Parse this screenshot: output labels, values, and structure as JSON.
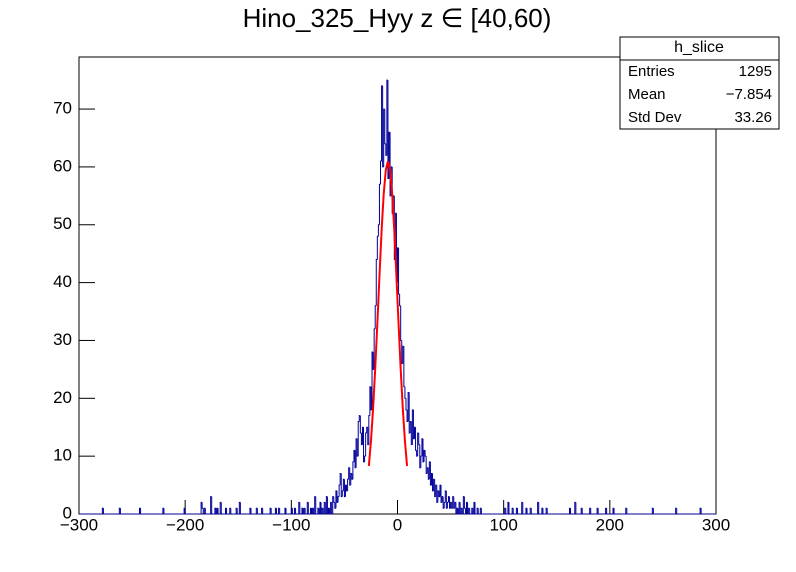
{
  "chart_data": {
    "type": "histogram",
    "title": "Hino_325_Hyy z  ∈ [40,60)",
    "color": "#000099",
    "xlim": [
      -300,
      300
    ],
    "ylim": [
      0,
      79
    ],
    "xticks": [
      {
        "value": -300,
        "label": "−300"
      },
      {
        "value": -200,
        "label": "−200"
      },
      {
        "value": -100,
        "label": "−100"
      },
      0,
      100,
      200,
      300
    ],
    "yticks": [
      0,
      10,
      20,
      30,
      40,
      50,
      60,
      70
    ],
    "bins": [
      -300,
      -299,
      -298,
      -297,
      -296,
      -295,
      -294,
      -293,
      -292,
      -291,
      -290,
      -289,
      -288,
      -287,
      -286,
      -285,
      -284,
      -283,
      -282,
      -281,
      -280,
      -279,
      -278,
      -277,
      -276,
      -275,
      -274,
      -273,
      -272,
      -271,
      -270,
      -269,
      -268,
      -267,
      -266,
      -265,
      -264,
      -263,
      -262,
      -261,
      -260,
      -259,
      -258,
      -257,
      -256,
      -255,
      -254,
      -253,
      -252,
      -251,
      -250,
      -249,
      -248,
      -247,
      -246,
      -245,
      -244,
      -243,
      -242,
      -241,
      -240,
      -239,
      -238,
      -237,
      -236,
      -235,
      -234,
      -233,
      -232,
      -231,
      -230,
      -229,
      -228,
      -227,
      -226,
      -225,
      -224,
      -223,
      -222,
      -221,
      -220,
      -219,
      -218,
      -217,
      -216,
      -215,
      -214,
      -213,
      -212,
      -211,
      -210,
      -209,
      -208,
      -207,
      -206,
      -205,
      -204,
      -203,
      -202,
      -201,
      -200,
      -199,
      -198,
      -197,
      -196,
      -195,
      -194,
      -193,
      -192,
      -191,
      -190,
      -189,
      -188,
      -187,
      -186,
      -185,
      -184,
      -183,
      -182,
      -181,
      -180,
      -179,
      -178,
      -177,
      -176,
      -175,
      -174,
      -173,
      -172,
      -171,
      -170,
      -169,
      -168,
      -167,
      -166,
      -165,
      -164,
      -163,
      -162,
      -161,
      -160,
      -159,
      -158,
      -157,
      -156,
      -155,
      -154,
      -153,
      -152,
      -151,
      -150,
      -149,
      -148,
      -147,
      -146,
      -145,
      -144,
      -143,
      -142,
      -141,
      -140,
      -139,
      -138,
      -137,
      -136,
      -135,
      -134,
      -133,
      -132,
      -131,
      -130,
      -129,
      -128,
      -127,
      -126,
      -125,
      -124,
      -123,
      -122,
      -121,
      -120,
      -119,
      -118,
      -117,
      -116,
      -115,
      -114,
      -113,
      -112,
      -111,
      -110,
      -109,
      -108,
      -107,
      -106,
      -105,
      -104,
      -103,
      -102,
      -101,
      -100,
      -99,
      -98,
      -97,
      -96,
      -95,
      -94,
      -93,
      -92,
      -91,
      -90,
      -89,
      -88,
      -87,
      -86,
      -85,
      -84,
      -83,
      -82,
      -81,
      -80,
      -79,
      -78,
      -77,
      -76,
      -75,
      -74,
      -73,
      -72,
      -71,
      -70,
      -69,
      -68,
      -67,
      -66,
      -65,
      -64,
      -63,
      -62,
      -61,
      -60,
      -59,
      -58,
      -57,
      -56,
      -55,
      -54,
      -53,
      -52,
      -51,
      -50,
      -49,
      -48,
      -47,
      -46,
      -45,
      -44,
      -43,
      -42,
      -41,
      -40,
      -39,
      -38,
      -37,
      -36,
      -35,
      -34,
      -33,
      -32,
      -31,
      -30,
      -29,
      -28,
      -27,
      -26,
      -25,
      -24,
      -23,
      -22,
      -21,
      -20,
      -19,
      -18,
      -17,
      -16,
      -15,
      -14,
      -13,
      -12,
      -11,
      -10,
      -9,
      -8,
      -7,
      -6,
      -5,
      -4,
      -3,
      -2,
      -1,
      0,
      1,
      2,
      3,
      4,
      5,
      6,
      7,
      8,
      9,
      10,
      11,
      12,
      13,
      14,
      15,
      16,
      17,
      18,
      19,
      20,
      21,
      22,
      23,
      24,
      25,
      26,
      27,
      28,
      29,
      30,
      31,
      32,
      33,
      34,
      35,
      36,
      37,
      38,
      39,
      40,
      41,
      42,
      43,
      44,
      45,
      46,
      47,
      48,
      49,
      50,
      51,
      52,
      53,
      54,
      55,
      56,
      57,
      58,
      59,
      60,
      61,
      62,
      63,
      64,
      65,
      66,
      67,
      68,
      69,
      70,
      71,
      72,
      73,
      74,
      75,
      76,
      77,
      78,
      79,
      80,
      81,
      82,
      83,
      84,
      85,
      86,
      87,
      88,
      89,
      90,
      91,
      92,
      93,
      94,
      95,
      96,
      97,
      98,
      99,
      100,
      101,
      102,
      103,
      104,
      105,
      106,
      107,
      108,
      109,
      110,
      111,
      112,
      113,
      114,
      115,
      116,
      117,
      118,
      119,
      120,
      121,
      122,
      123,
      124,
      125,
      126,
      127,
      128,
      129,
      130,
      131,
      132,
      133,
      134,
      135,
      136,
      137,
      138,
      139,
      140,
      141,
      142,
      143,
      144,
      145,
      146,
      147,
      148,
      149,
      150,
      151,
      152,
      153,
      154,
      155,
      156,
      157,
      158,
      159,
      160,
      161,
      162,
      163,
      164,
      165,
      166,
      167,
      168,
      169,
      170,
      171,
      172,
      173,
      174,
      175,
      176,
      177,
      178,
      179,
      180,
      181,
      182,
      183,
      184,
      185,
      186,
      187,
      188,
      189,
      190,
      191,
      192,
      193,
      194,
      195,
      196,
      197,
      198,
      199,
      200,
      201,
      202,
      203,
      204,
      205,
      206,
      207,
      208,
      209,
      210,
      211,
      212,
      213,
      214,
      215,
      216,
      217,
      218,
      219,
      220,
      221,
      222,
      223,
      224,
      225,
      226,
      227,
      228,
      229,
      230,
      231,
      232,
      233,
      234,
      235,
      236,
      237,
      238,
      239,
      240,
      241,
      242,
      243,
      244,
      245,
      246,
      247,
      248,
      249,
      250,
      251,
      252,
      253,
      254,
      255,
      256,
      257,
      258,
      259,
      260,
      261,
      262,
      263,
      264,
      265,
      266,
      267,
      268,
      269,
      270,
      271,
      272,
      273,
      274,
      275,
      276,
      277,
      278,
      279,
      280,
      281,
      282,
      283,
      284,
      285,
      286,
      287,
      288,
      289,
      290,
      291,
      292,
      293,
      294,
      295,
      296,
      297,
      298,
      299,
      300
    ],
    "values": [
      0,
      0,
      0,
      0,
      0,
      0,
      0,
      0,
      0,
      0,
      0,
      0,
      0,
      0,
      0,
      0,
      0,
      0,
      0,
      0,
      0,
      0,
      1,
      0,
      0,
      0,
      0,
      0,
      0,
      0,
      0,
      0,
      0,
      0,
      0,
      0,
      0,
      0,
      1,
      0,
      0,
      0,
      0,
      0,
      0,
      0,
      0,
      0,
      0,
      0,
      0,
      0,
      0,
      0,
      0,
      0,
      0,
      1,
      0,
      0,
      0,
      0,
      0,
      0,
      0,
      0,
      0,
      0,
      0,
      0,
      0,
      0,
      0,
      0,
      0,
      0,
      0,
      0,
      0,
      1,
      0,
      0,
      0,
      0,
      0,
      0,
      0,
      0,
      0,
      0,
      0,
      0,
      0,
      0,
      0,
      0,
      0,
      0,
      0,
      1,
      0,
      0,
      0,
      0,
      0,
      0,
      0,
      0,
      0,
      0,
      0,
      0,
      0,
      0,
      0,
      2,
      1,
      0,
      1,
      0,
      0,
      0,
      0,
      0,
      3,
      0,
      0,
      0,
      1,
      0,
      1,
      0,
      0,
      2,
      0,
      0,
      0,
      0,
      1,
      0,
      0,
      0,
      1,
      0,
      0,
      0,
      0,
      0,
      1,
      0,
      0,
      2,
      0,
      0,
      0,
      0,
      0,
      0,
      0,
      0,
      0,
      1,
      0,
      0,
      0,
      0,
      0,
      1,
      0,
      0,
      0,
      0,
      1,
      0,
      0,
      0,
      0,
      0,
      0,
      0,
      1,
      0,
      0,
      0,
      0,
      1,
      0,
      0,
      1,
      0,
      0,
      0,
      0,
      0,
      1,
      0,
      0,
      0,
      0,
      0,
      1,
      0,
      0,
      1,
      0,
      0,
      0,
      2,
      0,
      0,
      1,
      0,
      1,
      0,
      0,
      2,
      0,
      0,
      1,
      0,
      1,
      0,
      3,
      0,
      0,
      1,
      0,
      2,
      0,
      1,
      0,
      2,
      0,
      3,
      0,
      1,
      0,
      2,
      0,
      3,
      2,
      1,
      4,
      2,
      3,
      5,
      7,
      3,
      4,
      6,
      3,
      5,
      4,
      6,
      8,
      5,
      7,
      6,
      9,
      11,
      8,
      13,
      10,
      16,
      17,
      14,
      12,
      15,
      9,
      10,
      14,
      15,
      12,
      17,
      22,
      18,
      28,
      25,
      32,
      36,
      44,
      48,
      50,
      57,
      61,
      74,
      60,
      70,
      64,
      62,
      75,
      58,
      66,
      55,
      60,
      52,
      55,
      44,
      52,
      40,
      46,
      38,
      36,
      30,
      26,
      29,
      22,
      20,
      18,
      16,
      21,
      14,
      16,
      12,
      18,
      13,
      15,
      11,
      10,
      14,
      12,
      8,
      10,
      13,
      9,
      11,
      10,
      7,
      8,
      6,
      9,
      5,
      7,
      4,
      6,
      3,
      5,
      2,
      4,
      3,
      5,
      2,
      3,
      1,
      2,
      4,
      1,
      2,
      3,
      1,
      2,
      1,
      3,
      1,
      2,
      0,
      1,
      0,
      2,
      0,
      1,
      0,
      3,
      1,
      0,
      2,
      0,
      1,
      0,
      0,
      1,
      0,
      2,
      0,
      0,
      1,
      0,
      0,
      1,
      0,
      0,
      0,
      0,
      0,
      0,
      0,
      0,
      0,
      0,
      0,
      0,
      0,
      0,
      0,
      0,
      0,
      0,
      0,
      0,
      0,
      0,
      1,
      0,
      0,
      2,
      0,
      0,
      0,
      1,
      0,
      0,
      0,
      1,
      0,
      0,
      0,
      0,
      2,
      0,
      0,
      0,
      1,
      0,
      0,
      0,
      1,
      0,
      0,
      0,
      0,
      0,
      0,
      2,
      0,
      0,
      0,
      1,
      0,
      0,
      0,
      1,
      0,
      0,
      0,
      0,
      0,
      0,
      0,
      0,
      0,
      0,
      0,
      0,
      0,
      0,
      0,
      0,
      0,
      0,
      0,
      0,
      0,
      1,
      0,
      0,
      0,
      0,
      2,
      0,
      0,
      0,
      0,
      0,
      1,
      0,
      0,
      0,
      0,
      0,
      0,
      0,
      1,
      0,
      0,
      0,
      0,
      0,
      0,
      1,
      0,
      0,
      0,
      0,
      0,
      0,
      0,
      1,
      0,
      0,
      0,
      0,
      0,
      0,
      1,
      0,
      0,
      0,
      0,
      0,
      0,
      0,
      0,
      0,
      0,
      0,
      1,
      0,
      0,
      0,
      0,
      0,
      0,
      0,
      0,
      0,
      0,
      0,
      0,
      0,
      0,
      0,
      0,
      0,
      0,
      0,
      0,
      0,
      0,
      0,
      0,
      1,
      0,
      0,
      0,
      0,
      0,
      0,
      0,
      0,
      0,
      0,
      0,
      0,
      0,
      0,
      0,
      0,
      0,
      0,
      0,
      0,
      0,
      1,
      0,
      0,
      0,
      0,
      0,
      0,
      0,
      0,
      0,
      0,
      0,
      0,
      0,
      0,
      0,
      0,
      0,
      0,
      0,
      0,
      0,
      0,
      1,
      0,
      0,
      0,
      0,
      0,
      0,
      0,
      0,
      0,
      0,
      0,
      0,
      0,
      0
    ],
    "fit": {
      "color": "#ff0000",
      "x": [
        -27,
        -25,
        -23,
        -21,
        -19,
        -17,
        -15,
        -13,
        -11,
        -9,
        -7,
        -5,
        -3,
        -1,
        1,
        3,
        5,
        7,
        9
      ],
      "values": [
        8.3,
        12.6,
        18.2,
        25.1,
        32.9,
        41.1,
        48.9,
        55.3,
        59.5,
        61,
        59.5,
        55.3,
        48.9,
        41.1,
        32.9,
        25.1,
        18.2,
        12.6,
        8.3
      ]
    },
    "stats": {
      "title": "h_slice",
      "rows": [
        [
          "Entries",
          "1295"
        ],
        [
          "Mean",
          "−7.854"
        ],
        [
          "Std Dev",
          "33.26"
        ]
      ]
    }
  }
}
